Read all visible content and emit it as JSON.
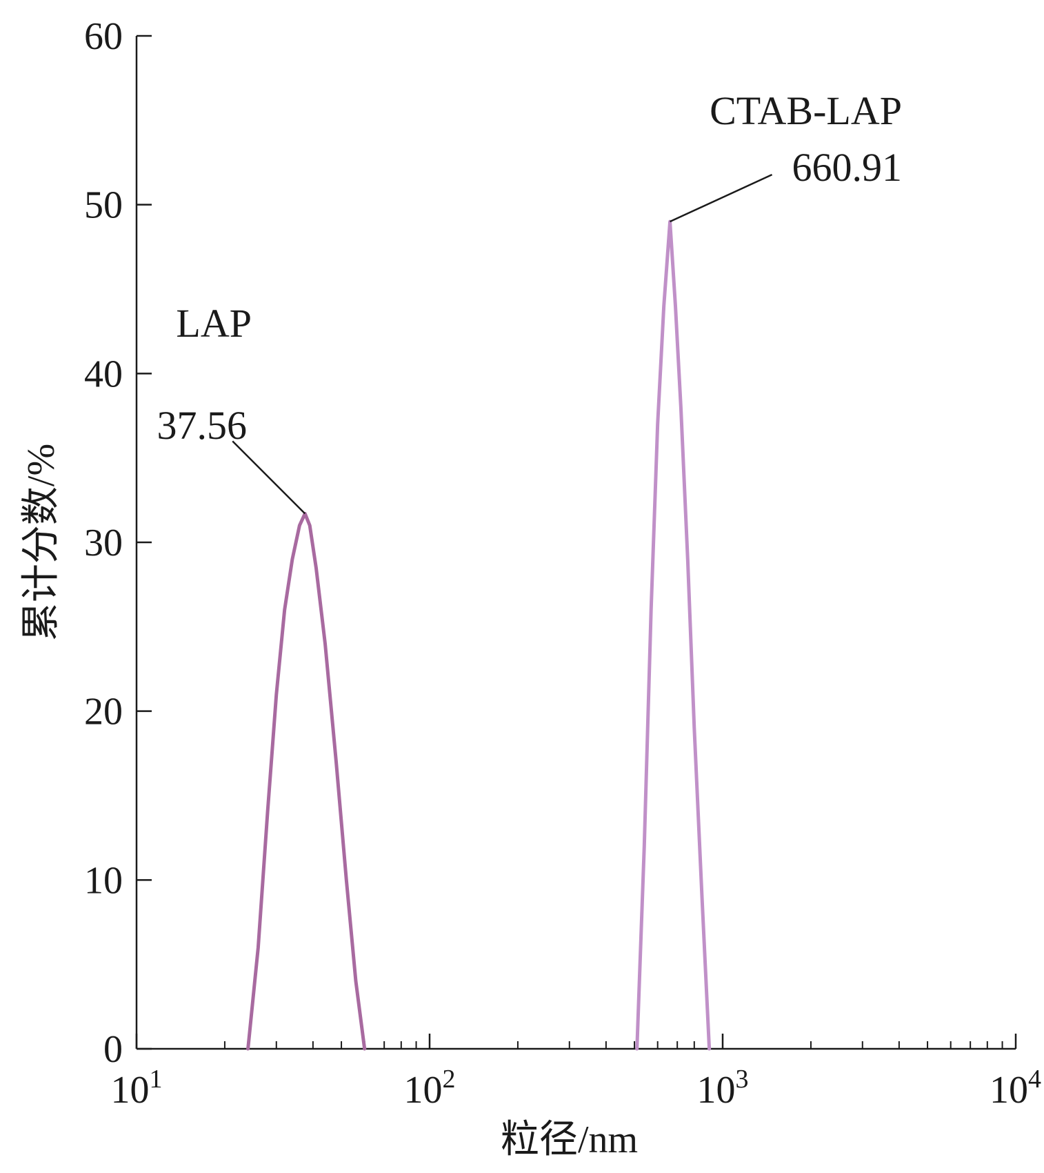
{
  "chart_data": {
    "type": "line",
    "xscale": "log",
    "xlim": [
      10,
      10000
    ],
    "ylim": [
      0,
      60
    ],
    "xlabel": "粒径/nm",
    "ylabel": "累计分数/%",
    "grid": false,
    "yticks": [
      0,
      10,
      20,
      30,
      40,
      50,
      60
    ],
    "xticks": [
      {
        "value": 10,
        "base": "10",
        "exp": "1"
      },
      {
        "value": 100,
        "base": "10",
        "exp": "2"
      },
      {
        "value": 1000,
        "base": "10",
        "exp": "3"
      },
      {
        "value": 10000,
        "base": "10",
        "exp": "4"
      }
    ],
    "series": [
      {
        "name": "LAP",
        "color": "#a86aa0",
        "x": [
          24,
          26,
          28,
          30,
          32,
          34,
          36,
          37.56,
          39,
          41,
          44,
          48,
          52,
          56,
          60
        ],
        "y": [
          0,
          6,
          14,
          21,
          26,
          29,
          31,
          31.7,
          31,
          28.5,
          24,
          17,
          10,
          4,
          0
        ],
        "peak": {
          "x": 37.56,
          "y": 31.7,
          "label": "37.56"
        }
      },
      {
        "name": "CTAB-LAP",
        "color": "#c090c8",
        "x": [
          510,
          540,
          570,
          600,
          630,
          660.91,
          690,
          720,
          760,
          800,
          850,
          900
        ],
        "y": [
          0,
          12,
          26,
          37,
          44,
          49,
          44,
          38,
          29,
          19,
          9,
          0
        ],
        "peak": {
          "x": 660.91,
          "y": 49,
          "label": "660.91"
        }
      }
    ]
  }
}
